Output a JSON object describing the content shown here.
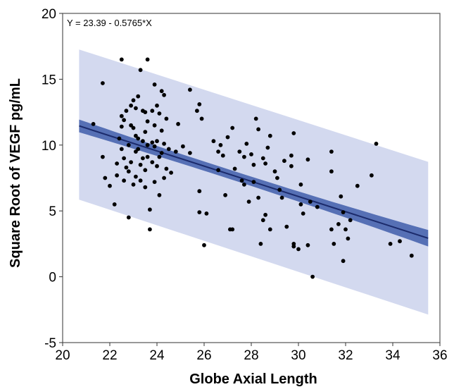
{
  "chart_data": {
    "type": "scatter",
    "title": "",
    "annotation": "Y = 23.39 - 0.5765*X",
    "xlabel": "Globe Axial Length",
    "ylabel": "Square Root of VEGF pg/mL",
    "xlim": [
      20,
      36
    ],
    "ylim": [
      -5,
      20
    ],
    "xticks": [
      20,
      22,
      24,
      26,
      28,
      30,
      32,
      34,
      36
    ],
    "yticks": [
      -5,
      0,
      5,
      10,
      15,
      20
    ],
    "grid": false,
    "legend": "none",
    "fit_line": {
      "intercept": 23.39,
      "slope": -0.5765,
      "x_range": [
        20.7,
        35.5
      ]
    },
    "confidence_band": {
      "x": [
        20.7,
        35.5
      ],
      "lower_offset": [
        -0.9,
        -0.9
      ],
      "upper_offset": [
        0.9,
        0.9
      ]
    },
    "prediction_band": {
      "x": [
        20.7,
        35.5
      ],
      "lower_offset": [
        -5.6,
        -5.8
      ],
      "upper_offset": [
        5.8,
        5.8
      ]
    },
    "colors": {
      "points": "#000000",
      "fit_line": "#1b2a6b",
      "confidence_band": "#5670b5",
      "prediction_band": "#d3d9ef",
      "frame": "#555555"
    },
    "points": [
      [
        21.3,
        11.6
      ],
      [
        21.7,
        14.7
      ],
      [
        21.7,
        9.1
      ],
      [
        21.8,
        7.5
      ],
      [
        22.0,
        6.9
      ],
      [
        22.2,
        5.5
      ],
      [
        22.3,
        7.7
      ],
      [
        22.3,
        8.6
      ],
      [
        22.4,
        10.5
      ],
      [
        22.5,
        16.5
      ],
      [
        22.5,
        11.4
      ],
      [
        22.5,
        12.2
      ],
      [
        22.5,
        9.7
      ],
      [
        22.6,
        9.0
      ],
      [
        22.6,
        7.3
      ],
      [
        22.6,
        11.9
      ],
      [
        22.7,
        12.6
      ],
      [
        22.7,
        8.3
      ],
      [
        22.8,
        10.0
      ],
      [
        22.8,
        8.0
      ],
      [
        22.8,
        4.5
      ],
      [
        22.9,
        13.0
      ],
      [
        22.9,
        11.5
      ],
      [
        22.9,
        8.7
      ],
      [
        23.0,
        13.4
      ],
      [
        23.0,
        11.3
      ],
      [
        23.0,
        7.0
      ],
      [
        23.1,
        12.8
      ],
      [
        23.1,
        10.7
      ],
      [
        23.1,
        9.5
      ],
      [
        23.1,
        7.6
      ],
      [
        23.2,
        13.7
      ],
      [
        23.2,
        10.5
      ],
      [
        23.2,
        9.7
      ],
      [
        23.3,
        8.5
      ],
      [
        23.3,
        7.3
      ],
      [
        23.3,
        15.7
      ],
      [
        23.4,
        12.6
      ],
      [
        23.4,
        10.3
      ],
      [
        23.4,
        9.0
      ],
      [
        23.5,
        12.5
      ],
      [
        23.5,
        11.0
      ],
      [
        23.5,
        8.1
      ],
      [
        23.5,
        6.8
      ],
      [
        23.6,
        16.5
      ],
      [
        23.6,
        11.8
      ],
      [
        23.6,
        10.0
      ],
      [
        23.6,
        9.1
      ],
      [
        23.7,
        5.1
      ],
      [
        23.7,
        3.6
      ],
      [
        23.8,
        12.6
      ],
      [
        23.8,
        10.2
      ],
      [
        23.8,
        8.7
      ],
      [
        23.9,
        14.6
      ],
      [
        23.9,
        11.5
      ],
      [
        23.9,
        9.9
      ],
      [
        23.9,
        7.2
      ],
      [
        24.0,
        13.0
      ],
      [
        24.0,
        10.3
      ],
      [
        24.0,
        8.4
      ],
      [
        24.1,
        12.4
      ],
      [
        24.1,
        9.1
      ],
      [
        24.1,
        6.2
      ],
      [
        24.2,
        14.1
      ],
      [
        24.2,
        11.1
      ],
      [
        24.2,
        9.4
      ],
      [
        24.3,
        13.8
      ],
      [
        24.3,
        10.1
      ],
      [
        24.3,
        7.5
      ],
      [
        24.4,
        12.0
      ],
      [
        24.4,
        8.2
      ],
      [
        24.5,
        9.7
      ],
      [
        24.6,
        7.9
      ],
      [
        24.8,
        9.5
      ],
      [
        24.9,
        11.6
      ],
      [
        25.1,
        9.9
      ],
      [
        25.4,
        14.2
      ],
      [
        25.4,
        9.4
      ],
      [
        25.7,
        12.6
      ],
      [
        25.8,
        13.1
      ],
      [
        25.8,
        6.5
      ],
      [
        25.8,
        4.9
      ],
      [
        25.9,
        12.0
      ],
      [
        26.0,
        2.4
      ],
      [
        26.1,
        4.8
      ],
      [
        26.4,
        10.3
      ],
      [
        26.6,
        9.5
      ],
      [
        26.6,
        8.1
      ],
      [
        26.7,
        10.0
      ],
      [
        26.8,
        9.2
      ],
      [
        26.9,
        6.2
      ],
      [
        27.0,
        10.6
      ],
      [
        27.1,
        3.6
      ],
      [
        27.2,
        11.3
      ],
      [
        27.2,
        3.6
      ],
      [
        27.3,
        8.2
      ],
      [
        27.5,
        9.5
      ],
      [
        27.6,
        7.3
      ],
      [
        27.7,
        9.1
      ],
      [
        27.7,
        7.0
      ],
      [
        27.8,
        10.1
      ],
      [
        27.9,
        5.7
      ],
      [
        28.0,
        9.3
      ],
      [
        28.1,
        8.5
      ],
      [
        28.1,
        7.2
      ],
      [
        28.2,
        12.0
      ],
      [
        28.3,
        11.2
      ],
      [
        28.3,
        6.0
      ],
      [
        28.4,
        2.5
      ],
      [
        28.5,
        9.0
      ],
      [
        28.5,
        4.3
      ],
      [
        28.6,
        8.6
      ],
      [
        28.6,
        4.7
      ],
      [
        28.7,
        9.8
      ],
      [
        28.8,
        10.7
      ],
      [
        28.8,
        3.6
      ],
      [
        29.0,
        8.0
      ],
      [
        29.1,
        7.5
      ],
      [
        29.2,
        6.6
      ],
      [
        29.3,
        6.0
      ],
      [
        29.4,
        8.8
      ],
      [
        29.5,
        3.8
      ],
      [
        29.7,
        9.2
      ],
      [
        29.7,
        8.4
      ],
      [
        29.8,
        10.9
      ],
      [
        29.8,
        2.5
      ],
      [
        29.8,
        2.3
      ],
      [
        30.0,
        2.1
      ],
      [
        30.1,
        7.0
      ],
      [
        30.1,
        5.5
      ],
      [
        30.2,
        4.8
      ],
      [
        30.4,
        8.9
      ],
      [
        30.4,
        2.4
      ],
      [
        30.5,
        5.7
      ],
      [
        30.6,
        0.0
      ],
      [
        30.8,
        5.3
      ],
      [
        31.4,
        9.5
      ],
      [
        31.4,
        8.0
      ],
      [
        31.4,
        3.6
      ],
      [
        31.5,
        2.5
      ],
      [
        31.7,
        4.0
      ],
      [
        31.8,
        6.1
      ],
      [
        31.9,
        4.9
      ],
      [
        31.9,
        1.2
      ],
      [
        32.0,
        3.6
      ],
      [
        32.1,
        2.9
      ],
      [
        32.2,
        4.3
      ],
      [
        32.5,
        6.9
      ],
      [
        33.1,
        7.7
      ],
      [
        33.3,
        10.1
      ],
      [
        33.9,
        2.5
      ],
      [
        34.3,
        2.7
      ],
      [
        34.8,
        1.6
      ]
    ]
  }
}
